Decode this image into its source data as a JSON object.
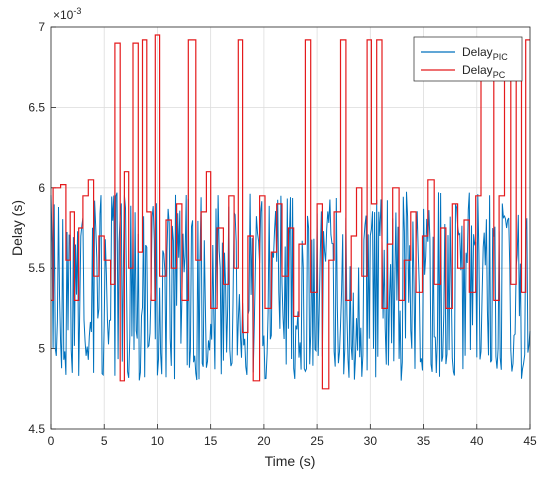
{
  "chart_data": {
    "type": "line",
    "xlabel": "Time (s)",
    "ylabel": "Delay (s)",
    "xlim": [
      0,
      45
    ],
    "ylim": [
      4.5,
      7
    ],
    "y_exponent_label": "×10",
    "y_exponent_power": "-3",
    "x_ticks": [
      "0",
      "5",
      "10",
      "15",
      "20",
      "25",
      "30",
      "35",
      "40",
      "45"
    ],
    "y_ticks": [
      "4.5",
      "5",
      "5.5",
      "6",
      "6.5",
      "7"
    ],
    "grid": true,
    "legend_position": "top-right",
    "series": [
      {
        "name": "Delay",
        "name_sub": "PIC",
        "color": "#0072BD",
        "style": "noisy",
        "x_step": 0.1,
        "base": 5.45,
        "range": [
          4.8,
          5.98
        ]
      },
      {
        "name": "Delay",
        "name_sub": "PC",
        "color": "#E41A1C",
        "style": "step",
        "points": [
          [
            0,
            5.3
          ],
          [
            0.2,
            6.0
          ],
          [
            0.9,
            6.02
          ],
          [
            1.4,
            5.55
          ],
          [
            1.8,
            5.85
          ],
          [
            2.2,
            5.3
          ],
          [
            2.6,
            5.75
          ],
          [
            3.0,
            5.95
          ],
          [
            3.5,
            6.05
          ],
          [
            4.0,
            5.45
          ],
          [
            4.5,
            5.7
          ],
          [
            5.0,
            5.55
          ],
          [
            5.6,
            5.4
          ],
          [
            6.0,
            6.9
          ],
          [
            6.5,
            4.8
          ],
          [
            6.9,
            6.1
          ],
          [
            7.3,
            5.5
          ],
          [
            7.7,
            6.9
          ],
          [
            8.2,
            5.6
          ],
          [
            8.6,
            6.92
          ],
          [
            9.0,
            5.85
          ],
          [
            9.4,
            5.3
          ],
          [
            9.8,
            6.95
          ],
          [
            10.2,
            5.45
          ],
          [
            10.8,
            5.8
          ],
          [
            11.3,
            5.5
          ],
          [
            11.8,
            5.9
          ],
          [
            12.3,
            5.3
          ],
          [
            12.9,
            6.92
          ],
          [
            13.6,
            5.55
          ],
          [
            14.1,
            5.85
          ],
          [
            14.6,
            6.1
          ],
          [
            15.0,
            5.25
          ],
          [
            15.6,
            5.75
          ],
          [
            16.2,
            5.4
          ],
          [
            16.7,
            5.95
          ],
          [
            17.2,
            5.5
          ],
          [
            17.6,
            6.92
          ],
          [
            18.0,
            5.1
          ],
          [
            18.5,
            5.7
          ],
          [
            19.0,
            4.8
          ],
          [
            19.6,
            5.95
          ],
          [
            20.1,
            5.25
          ],
          [
            20.7,
            5.6
          ],
          [
            21.2,
            5.9
          ],
          [
            21.7,
            5.45
          ],
          [
            22.3,
            5.75
          ],
          [
            22.8,
            5.2
          ],
          [
            23.3,
            5.65
          ],
          [
            23.9,
            6.92
          ],
          [
            24.4,
            5.35
          ],
          [
            25.0,
            5.9
          ],
          [
            25.5,
            4.75
          ],
          [
            26.1,
            5.55
          ],
          [
            26.6,
            5.85
          ],
          [
            27.2,
            6.92
          ],
          [
            27.7,
            5.3
          ],
          [
            28.2,
            5.7
          ],
          [
            28.7,
            6.0
          ],
          [
            29.2,
            5.45
          ],
          [
            29.7,
            6.92
          ],
          [
            30.1,
            5.9
          ],
          [
            30.6,
            6.92
          ],
          [
            31.1,
            5.25
          ],
          [
            31.6,
            5.65
          ],
          [
            32.1,
            6.0
          ],
          [
            32.7,
            5.3
          ],
          [
            33.2,
            5.55
          ],
          [
            33.8,
            5.85
          ],
          [
            34.3,
            5.35
          ],
          [
            34.9,
            5.7
          ],
          [
            35.4,
            6.05
          ],
          [
            36.0,
            5.4
          ],
          [
            36.6,
            5.75
          ],
          [
            37.1,
            5.25
          ],
          [
            37.7,
            5.9
          ],
          [
            38.2,
            5.5
          ],
          [
            38.8,
            5.8
          ],
          [
            39.3,
            5.35
          ],
          [
            39.9,
            5.95
          ],
          [
            40.4,
            6.92
          ],
          [
            41.0,
            6.92
          ],
          [
            41.6,
            5.3
          ],
          [
            42.1,
            5.95
          ],
          [
            42.6,
            6.92
          ],
          [
            43.2,
            5.4
          ],
          [
            43.7,
            6.92
          ],
          [
            44.2,
            5.35
          ],
          [
            44.6,
            6.92
          ]
        ]
      }
    ]
  }
}
